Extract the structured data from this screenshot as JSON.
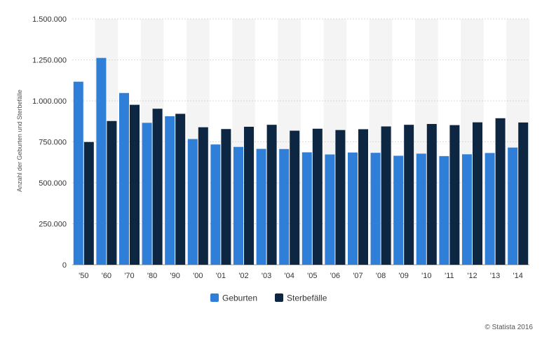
{
  "chart_data": {
    "type": "bar",
    "title": "",
    "xlabel": "",
    "ylabel": "Anzahl der Geburten und Sterbefälle",
    "categories": [
      "'50",
      "'60",
      "'70",
      "'80",
      "'90",
      "'00",
      "'01",
      "'02",
      "'03",
      "'04",
      "'05",
      "'06",
      "'07",
      "'08",
      "'09",
      "'10",
      "'11",
      "'12",
      "'13",
      "'14"
    ],
    "series": [
      {
        "name": "Geburten",
        "color": "#2f7ed8",
        "values": [
          1117000,
          1262000,
          1048000,
          866000,
          906000,
          767000,
          734000,
          719000,
          707000,
          706000,
          686000,
          673000,
          685000,
          683000,
          665000,
          678000,
          663000,
          674000,
          682000,
          715000
        ]
      },
      {
        "name": "Sterbefälle",
        "color": "#0d2642",
        "values": [
          749000,
          877000,
          976000,
          952000,
          921000,
          839000,
          828000,
          842000,
          854000,
          818000,
          830000,
          822000,
          827000,
          844000,
          854000,
          859000,
          852000,
          869000,
          894000,
          868000
        ]
      }
    ],
    "ylim": [
      0,
      1500000
    ],
    "yticks": [
      {
        "value": 0,
        "label": "0"
      },
      {
        "value": 250000,
        "label": "250.000"
      },
      {
        "value": 500000,
        "label": "500.000"
      },
      {
        "value": 750000,
        "label": "750.000"
      },
      {
        "value": 1000000,
        "label": "1.000.000"
      },
      {
        "value": 1250000,
        "label": "1.250.000"
      },
      {
        "value": 1500000,
        "label": "1.500.000"
      }
    ],
    "grid": true,
    "legend_position": "bottom-center"
  },
  "credit": "© Statista 2016"
}
